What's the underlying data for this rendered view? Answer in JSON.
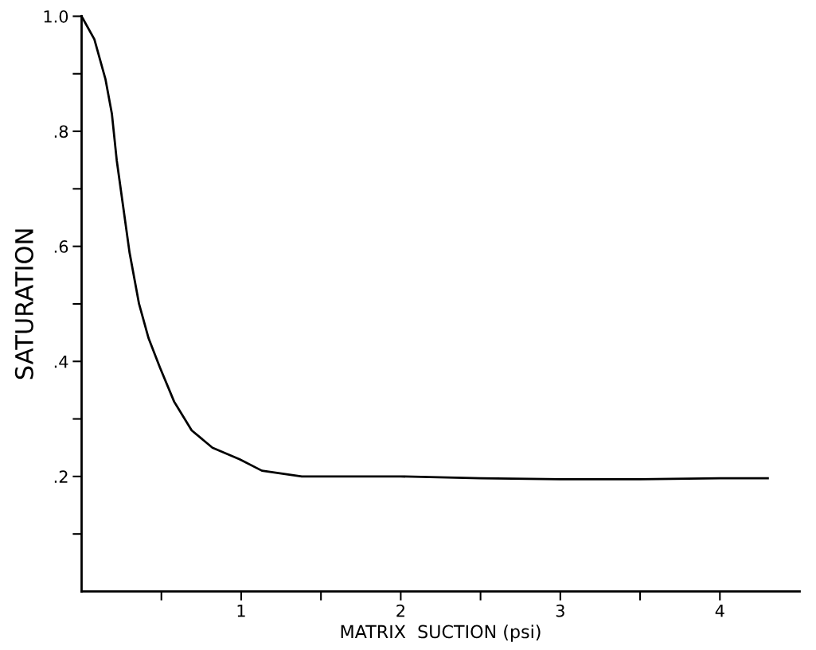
{
  "chart_data": {
    "type": "line",
    "xlabel": "MATRIX  SUCTION (psi)",
    "ylabel": "SATURATION",
    "x": [
      0,
      0.08,
      0.15,
      0.19,
      0.22,
      0.26,
      0.3,
      0.36,
      0.42,
      0.49,
      0.58,
      0.69,
      0.82,
      0.99,
      1.13,
      1.38,
      1.7,
      2.0,
      2.5,
      3.0,
      3.5,
      4.0,
      4.2,
      4.3
    ],
    "series": [
      {
        "color": "#000000",
        "values": [
          1.0,
          0.96,
          0.89,
          0.83,
          0.75,
          0.67,
          0.59,
          0.5,
          0.44,
          0.39,
          0.33,
          0.28,
          0.25,
          0.23,
          0.21,
          0.2,
          0.2,
          0.2,
          0.197,
          0.195,
          0.195,
          0.197,
          0.197,
          0.197
        ]
      }
    ],
    "xlim": [
      0,
      4.5
    ],
    "ylim": [
      0,
      1.0
    ],
    "xticks": [
      {
        "value": 0.5,
        "label": null
      },
      1,
      {
        "value": 1.5,
        "label": null
      },
      2,
      {
        "value": 2.5,
        "label": null
      },
      3,
      {
        "value": 3.5,
        "label": null
      },
      4
    ],
    "yticks": [
      {
        "value": 0.1,
        "label": null
      },
      {
        "value": 0.2,
        "label": ".2"
      },
      {
        "value": 0.3,
        "label": null
      },
      {
        "value": 0.4,
        "label": ".4"
      },
      {
        "value": 0.5,
        "label": null
      },
      {
        "value": 0.6,
        "label": ".6"
      },
      {
        "value": 0.7,
        "label": null
      },
      {
        "value": 0.8,
        "label": ".8"
      },
      {
        "value": 0.9,
        "label": null
      },
      {
        "value": 1.0,
        "label": "1.0"
      }
    ],
    "grid": false,
    "legend": false,
    "marker": "none",
    "line_style": "solid"
  }
}
